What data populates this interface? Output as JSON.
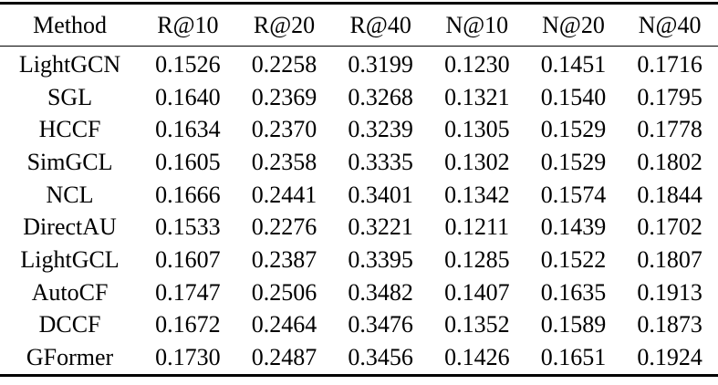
{
  "colors": {
    "background": "#ffffff",
    "text": "#000000",
    "rule": "#000000"
  },
  "chart_data": {
    "type": "table",
    "columns": [
      "Method",
      "R@10",
      "R@20",
      "R@40",
      "N@10",
      "N@20",
      "N@40"
    ],
    "rows": [
      [
        "LightGCN",
        "0.1526",
        "0.2258",
        "0.3199",
        "0.1230",
        "0.1451",
        "0.1716"
      ],
      [
        "SGL",
        "0.1640",
        "0.2369",
        "0.3268",
        "0.1321",
        "0.1540",
        "0.1795"
      ],
      [
        "HCCF",
        "0.1634",
        "0.2370",
        "0.3239",
        "0.1305",
        "0.1529",
        "0.1778"
      ],
      [
        "SimGCL",
        "0.1605",
        "0.2358",
        "0.3335",
        "0.1302",
        "0.1529",
        "0.1802"
      ],
      [
        "NCL",
        "0.1666",
        "0.2441",
        "0.3401",
        "0.1342",
        "0.1574",
        "0.1844"
      ],
      [
        "DirectAU",
        "0.1533",
        "0.2276",
        "0.3221",
        "0.1211",
        "0.1439",
        "0.1702"
      ],
      [
        "LightGCL",
        "0.1607",
        "0.2387",
        "0.3395",
        "0.1285",
        "0.1522",
        "0.1807"
      ],
      [
        "AutoCF",
        "0.1747",
        "0.2506",
        "0.3482",
        "0.1407",
        "0.1635",
        "0.1913"
      ],
      [
        "DCCF",
        "0.1672",
        "0.2464",
        "0.3476",
        "0.1352",
        "0.1589",
        "0.1873"
      ],
      [
        "GFormer",
        "0.1730",
        "0.2487",
        "0.3456",
        "0.1426",
        "0.1651",
        "0.1924"
      ]
    ]
  }
}
